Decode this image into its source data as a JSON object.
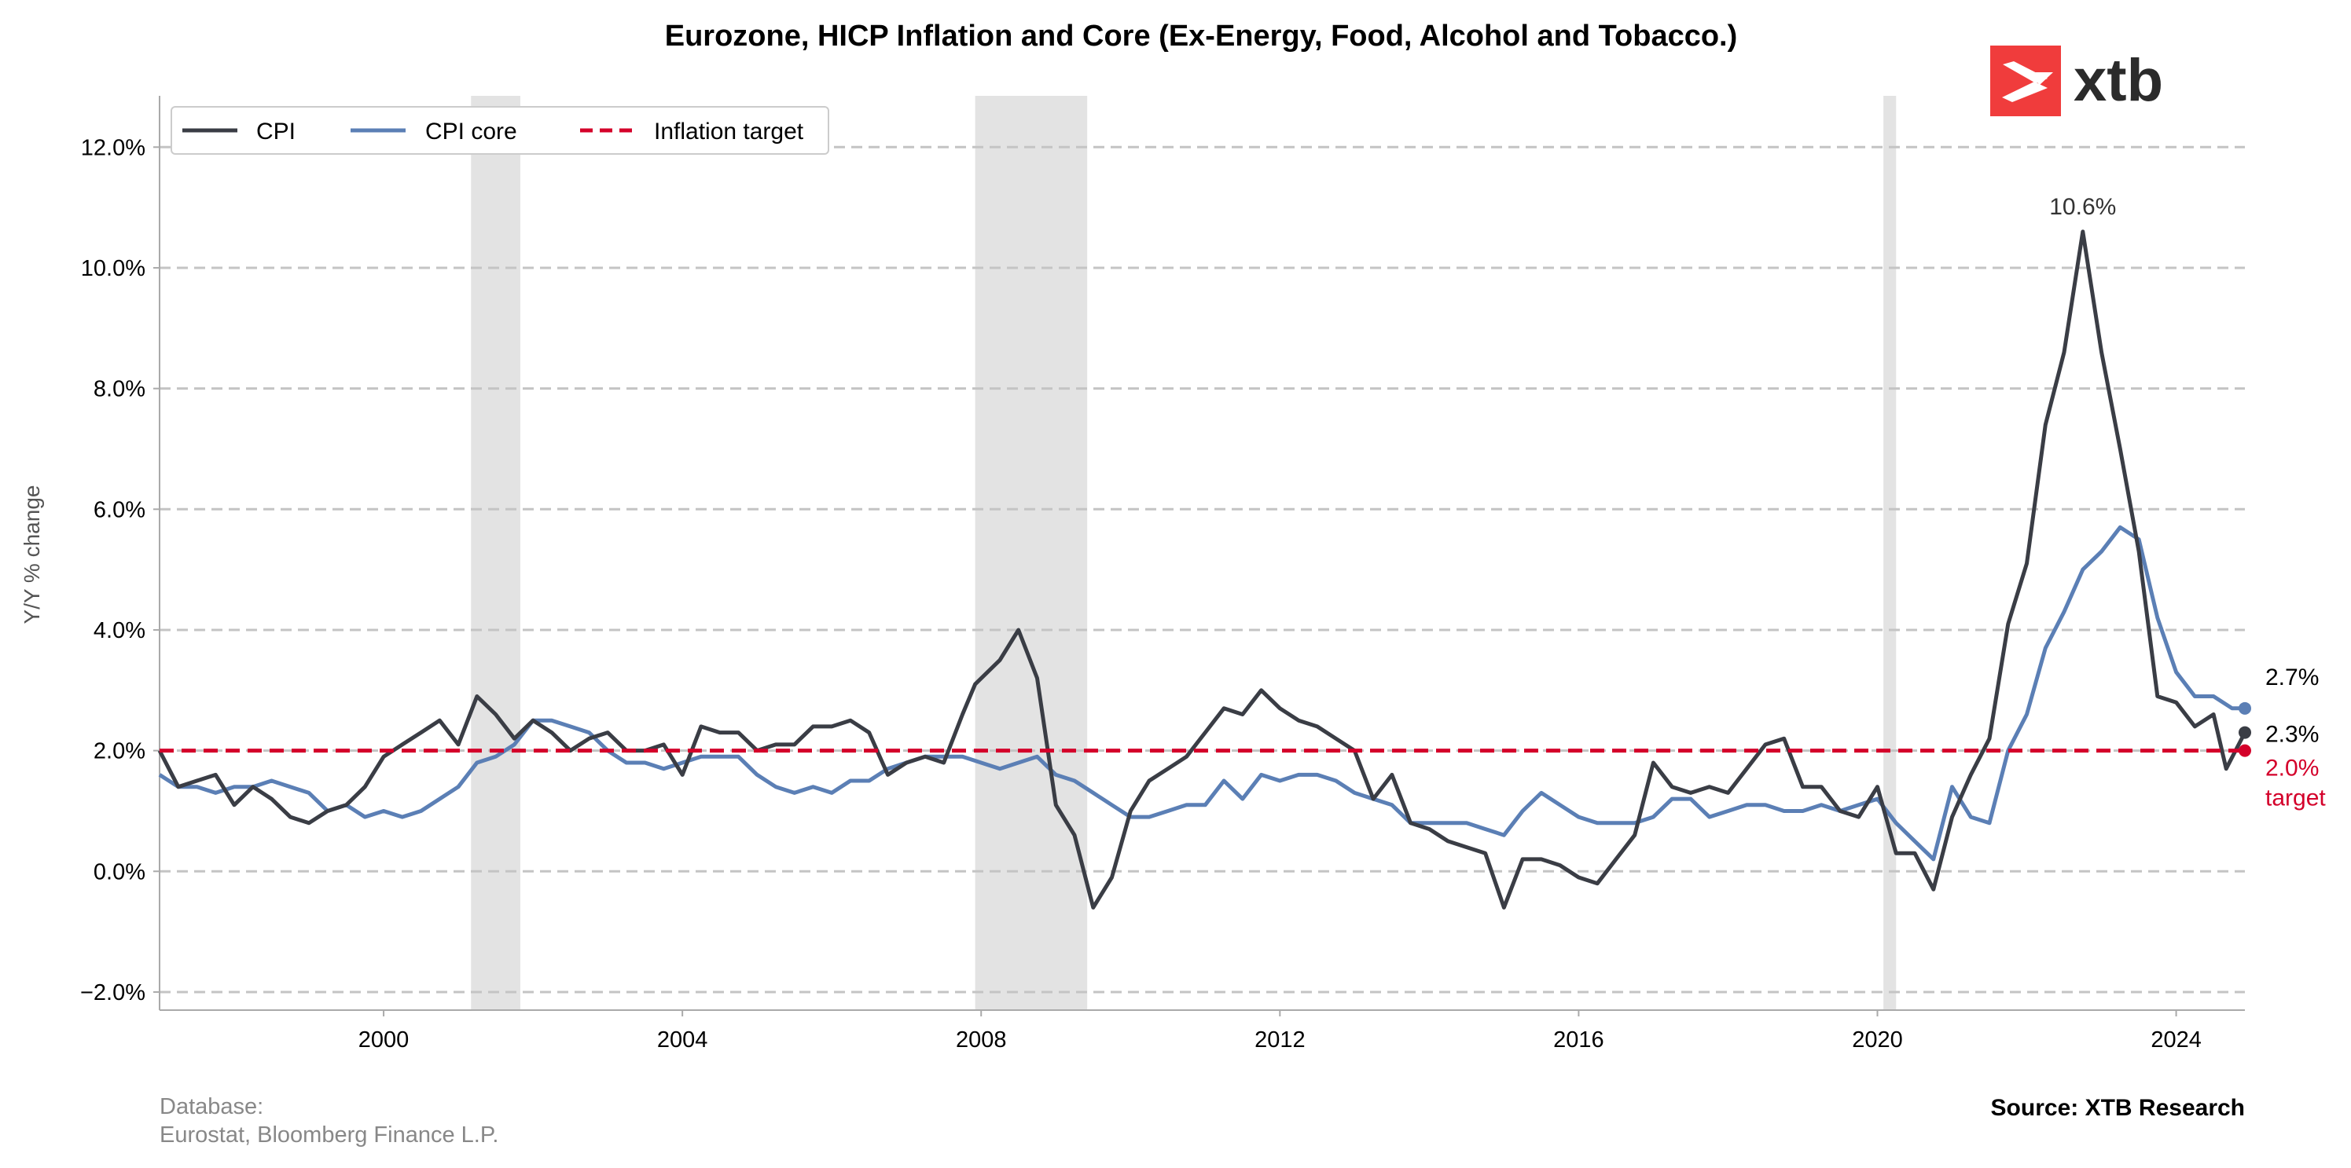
{
  "chart_data": {
    "type": "line",
    "title": "Eurozone, HICP Inflation and Core (Ex-Energy, Food, Alcohol and Tobacco.)",
    "ylabel": "Y/Y % change",
    "xlabel": "",
    "xlim": [
      1997.0,
      2024.92
    ],
    "ylim": [
      -2.3,
      12.85
    ],
    "yticks": [
      -2,
      0,
      2,
      4,
      6,
      8,
      10,
      12
    ],
    "ytick_labels": [
      "−2.0%",
      "0.0%",
      "2.0%",
      "4.0%",
      "6.0%",
      "8.0%",
      "10.0%",
      "12.0%"
    ],
    "xticks": [
      2000,
      2004,
      2008,
      2012,
      2016,
      2020,
      2024
    ],
    "xtick_labels": [
      "2000",
      "2004",
      "2008",
      "2012",
      "2016",
      "2020",
      "2024"
    ],
    "grid": "horizontal dashed",
    "legend_position": "top-left",
    "shaded_periods": [
      [
        2001.17,
        2001.83
      ],
      [
        2007.92,
        2009.42
      ],
      [
        2020.08,
        2020.25
      ]
    ],
    "series": [
      {
        "name": "CPI",
        "color": "#3a3d45",
        "points": [
          [
            1997.0,
            2.0
          ],
          [
            1997.25,
            1.4
          ],
          [
            1997.5,
            1.5
          ],
          [
            1997.75,
            1.6
          ],
          [
            1998.0,
            1.1
          ],
          [
            1998.25,
            1.4
          ],
          [
            1998.5,
            1.2
          ],
          [
            1998.75,
            0.9
          ],
          [
            1999.0,
            0.8
          ],
          [
            1999.25,
            1.0
          ],
          [
            1999.5,
            1.1
          ],
          [
            1999.75,
            1.4
          ],
          [
            2000.0,
            1.9
          ],
          [
            2000.25,
            2.1
          ],
          [
            2000.5,
            2.3
          ],
          [
            2000.75,
            2.5
          ],
          [
            2001.0,
            2.1
          ],
          [
            2001.25,
            2.9
          ],
          [
            2001.5,
            2.6
          ],
          [
            2001.75,
            2.2
          ],
          [
            2002.0,
            2.5
          ],
          [
            2002.25,
            2.3
          ],
          [
            2002.5,
            2.0
          ],
          [
            2002.75,
            2.2
          ],
          [
            2003.0,
            2.3
          ],
          [
            2003.25,
            2.0
          ],
          [
            2003.5,
            2.0
          ],
          [
            2003.75,
            2.1
          ],
          [
            2004.0,
            1.6
          ],
          [
            2004.25,
            2.4
          ],
          [
            2004.5,
            2.3
          ],
          [
            2004.75,
            2.3
          ],
          [
            2005.0,
            2.0
          ],
          [
            2005.25,
            2.1
          ],
          [
            2005.5,
            2.1
          ],
          [
            2005.75,
            2.4
          ],
          [
            2006.0,
            2.4
          ],
          [
            2006.25,
            2.5
          ],
          [
            2006.5,
            2.3
          ],
          [
            2006.75,
            1.6
          ],
          [
            2007.0,
            1.8
          ],
          [
            2007.25,
            1.9
          ],
          [
            2007.5,
            1.8
          ],
          [
            2007.75,
            2.6
          ],
          [
            2007.92,
            3.1
          ],
          [
            2008.25,
            3.5
          ],
          [
            2008.5,
            4.0
          ],
          [
            2008.75,
            3.2
          ],
          [
            2009.0,
            1.1
          ],
          [
            2009.25,
            0.6
          ],
          [
            2009.5,
            -0.6
          ],
          [
            2009.75,
            -0.1
          ],
          [
            2010.0,
            1.0
          ],
          [
            2010.25,
            1.5
          ],
          [
            2010.5,
            1.7
          ],
          [
            2010.75,
            1.9
          ],
          [
            2011.0,
            2.3
          ],
          [
            2011.25,
            2.7
          ],
          [
            2011.5,
            2.6
          ],
          [
            2011.75,
            3.0
          ],
          [
            2012.0,
            2.7
          ],
          [
            2012.25,
            2.5
          ],
          [
            2012.5,
            2.4
          ],
          [
            2012.75,
            2.2
          ],
          [
            2013.0,
            2.0
          ],
          [
            2013.25,
            1.2
          ],
          [
            2013.5,
            1.6
          ],
          [
            2013.75,
            0.8
          ],
          [
            2014.0,
            0.7
          ],
          [
            2014.25,
            0.5
          ],
          [
            2014.5,
            0.4
          ],
          [
            2014.75,
            0.3
          ],
          [
            2015.0,
            -0.6
          ],
          [
            2015.25,
            0.2
          ],
          [
            2015.5,
            0.2
          ],
          [
            2015.75,
            0.1
          ],
          [
            2016.0,
            -0.1
          ],
          [
            2016.25,
            -0.2
          ],
          [
            2016.5,
            0.2
          ],
          [
            2016.75,
            0.6
          ],
          [
            2017.0,
            1.8
          ],
          [
            2017.25,
            1.4
          ],
          [
            2017.5,
            1.3
          ],
          [
            2017.75,
            1.4
          ],
          [
            2018.0,
            1.3
          ],
          [
            2018.25,
            1.7
          ],
          [
            2018.5,
            2.1
          ],
          [
            2018.75,
            2.2
          ],
          [
            2019.0,
            1.4
          ],
          [
            2019.25,
            1.4
          ],
          [
            2019.5,
            1.0
          ],
          [
            2019.75,
            0.9
          ],
          [
            2020.0,
            1.4
          ],
          [
            2020.25,
            0.3
          ],
          [
            2020.5,
            0.3
          ],
          [
            2020.75,
            -0.3
          ],
          [
            2021.0,
            0.9
          ],
          [
            2021.25,
            1.6
          ],
          [
            2021.5,
            2.2
          ],
          [
            2021.75,
            4.1
          ],
          [
            2022.0,
            5.1
          ],
          [
            2022.25,
            7.4
          ],
          [
            2022.5,
            8.6
          ],
          [
            2022.75,
            10.6
          ],
          [
            2023.0,
            8.6
          ],
          [
            2023.25,
            7.0
          ],
          [
            2023.5,
            5.3
          ],
          [
            2023.75,
            2.9
          ],
          [
            2024.0,
            2.8
          ],
          [
            2024.25,
            2.4
          ],
          [
            2024.5,
            2.6
          ],
          [
            2024.67,
            1.7
          ],
          [
            2024.92,
            2.3
          ]
        ]
      },
      {
        "name": "CPI core",
        "color": "#5b7fb5",
        "points": [
          [
            1997.0,
            1.6
          ],
          [
            1997.25,
            1.4
          ],
          [
            1997.5,
            1.4
          ],
          [
            1997.75,
            1.3
          ],
          [
            1998.0,
            1.4
          ],
          [
            1998.25,
            1.4
          ],
          [
            1998.5,
            1.5
          ],
          [
            1998.75,
            1.4
          ],
          [
            1999.0,
            1.3
          ],
          [
            1999.25,
            1.0
          ],
          [
            1999.5,
            1.1
          ],
          [
            1999.75,
            0.9
          ],
          [
            2000.0,
            1.0
          ],
          [
            2000.25,
            0.9
          ],
          [
            2000.5,
            1.0
          ],
          [
            2000.75,
            1.2
          ],
          [
            2001.0,
            1.4
          ],
          [
            2001.25,
            1.8
          ],
          [
            2001.5,
            1.9
          ],
          [
            2001.75,
            2.1
          ],
          [
            2002.0,
            2.5
          ],
          [
            2002.25,
            2.5
          ],
          [
            2002.5,
            2.4
          ],
          [
            2002.75,
            2.3
          ],
          [
            2003.0,
            2.0
          ],
          [
            2003.25,
            1.8
          ],
          [
            2003.5,
            1.8
          ],
          [
            2003.75,
            1.7
          ],
          [
            2004.0,
            1.8
          ],
          [
            2004.25,
            1.9
          ],
          [
            2004.5,
            1.9
          ],
          [
            2004.75,
            1.9
          ],
          [
            2005.0,
            1.6
          ],
          [
            2005.25,
            1.4
          ],
          [
            2005.5,
            1.3
          ],
          [
            2005.75,
            1.4
          ],
          [
            2006.0,
            1.3
          ],
          [
            2006.25,
            1.5
          ],
          [
            2006.5,
            1.5
          ],
          [
            2006.75,
            1.7
          ],
          [
            2007.0,
            1.8
          ],
          [
            2007.25,
            1.9
          ],
          [
            2007.5,
            1.9
          ],
          [
            2007.75,
            1.9
          ],
          [
            2008.0,
            1.8
          ],
          [
            2008.25,
            1.7
          ],
          [
            2008.5,
            1.8
          ],
          [
            2008.75,
            1.9
          ],
          [
            2009.0,
            1.6
          ],
          [
            2009.25,
            1.5
          ],
          [
            2009.5,
            1.3
          ],
          [
            2009.75,
            1.1
          ],
          [
            2010.0,
            0.9
          ],
          [
            2010.25,
            0.9
          ],
          [
            2010.5,
            1.0
          ],
          [
            2010.75,
            1.1
          ],
          [
            2011.0,
            1.1
          ],
          [
            2011.25,
            1.5
          ],
          [
            2011.5,
            1.2
          ],
          [
            2011.75,
            1.6
          ],
          [
            2012.0,
            1.5
          ],
          [
            2012.25,
            1.6
          ],
          [
            2012.5,
            1.6
          ],
          [
            2012.75,
            1.5
          ],
          [
            2013.0,
            1.3
          ],
          [
            2013.25,
            1.2
          ],
          [
            2013.5,
            1.1
          ],
          [
            2013.75,
            0.8
          ],
          [
            2014.0,
            0.8
          ],
          [
            2014.25,
            0.8
          ],
          [
            2014.5,
            0.8
          ],
          [
            2014.75,
            0.7
          ],
          [
            2015.0,
            0.6
          ],
          [
            2015.25,
            1.0
          ],
          [
            2015.5,
            1.3
          ],
          [
            2015.75,
            1.1
          ],
          [
            2016.0,
            0.9
          ],
          [
            2016.25,
            0.8
          ],
          [
            2016.5,
            0.8
          ],
          [
            2016.75,
            0.8
          ],
          [
            2017.0,
            0.9
          ],
          [
            2017.25,
            1.2
          ],
          [
            2017.5,
            1.2
          ],
          [
            2017.75,
            0.9
          ],
          [
            2018.0,
            1.0
          ],
          [
            2018.25,
            1.1
          ],
          [
            2018.5,
            1.1
          ],
          [
            2018.75,
            1.0
          ],
          [
            2019.0,
            1.0
          ],
          [
            2019.25,
            1.1
          ],
          [
            2019.5,
            1.0
          ],
          [
            2019.75,
            1.1
          ],
          [
            2020.0,
            1.2
          ],
          [
            2020.25,
            0.8
          ],
          [
            2020.5,
            0.5
          ],
          [
            2020.75,
            0.2
          ],
          [
            2021.0,
            1.4
          ],
          [
            2021.25,
            0.9
          ],
          [
            2021.5,
            0.8
          ],
          [
            2021.75,
            2.0
          ],
          [
            2022.0,
            2.6
          ],
          [
            2022.25,
            3.7
          ],
          [
            2022.5,
            4.3
          ],
          [
            2022.75,
            5.0
          ],
          [
            2023.0,
            5.3
          ],
          [
            2023.25,
            5.7
          ],
          [
            2023.5,
            5.5
          ],
          [
            2023.75,
            4.2
          ],
          [
            2024.0,
            3.3
          ],
          [
            2024.25,
            2.9
          ],
          [
            2024.5,
            2.9
          ],
          [
            2024.75,
            2.7
          ],
          [
            2024.92,
            2.7
          ]
        ]
      },
      {
        "name": "Inflation target",
        "color": "#d4002a",
        "value": 2.0
      }
    ],
    "annotations": {
      "peak_label": "10.6%",
      "peak_point": [
        2022.75,
        10.6
      ],
      "end_labels": [
        {
          "text": "2.7%",
          "series": "CPI core",
          "value": 2.7
        },
        {
          "text": "2.3%",
          "series": "CPI",
          "value": 2.3
        },
        {
          "text": "2.0%",
          "series": "Inflation target",
          "value": 2.0
        },
        {
          "text": "target",
          "series": "Inflation target",
          "value": 2.0
        }
      ]
    }
  },
  "footer": {
    "database_label": "Database:",
    "database_sources": "Eurostat, Bloomberg Finance L.P.",
    "source": "Source: XTB Research"
  },
  "logo": {
    "text": "xtb",
    "icon": "xtb-x-icon",
    "color": "#f03c3c"
  }
}
